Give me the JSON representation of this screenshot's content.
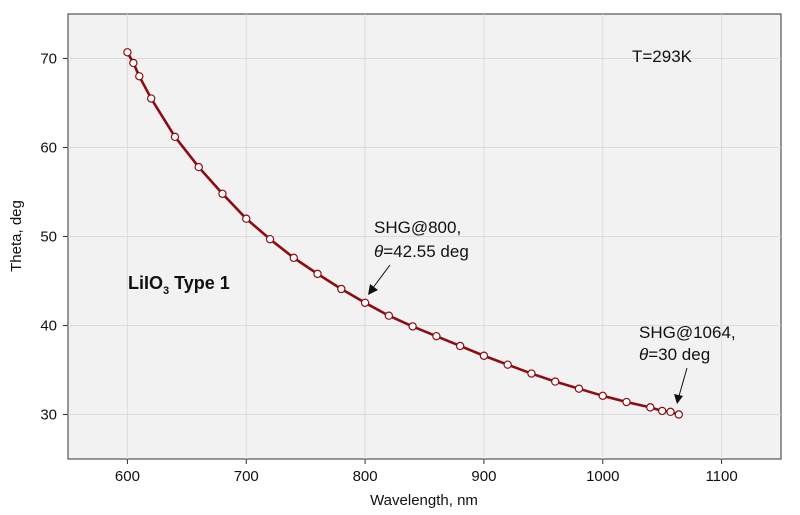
{
  "chart_data": {
    "type": "line",
    "title": "",
    "xlabel": "Wavelength, nm",
    "ylabel": "Theta, deg",
    "xlim": [
      550,
      1150
    ],
    "ylim": [
      25,
      75
    ],
    "xticks": [
      600,
      700,
      800,
      900,
      1000,
      1100
    ],
    "yticks": [
      30,
      40,
      50,
      60,
      70
    ],
    "grid": true,
    "series": [
      {
        "name": "LiIO3 Type 1",
        "color": "#8b0d12",
        "x": [
          600,
          605,
          610,
          620,
          640,
          660,
          680,
          700,
          720,
          740,
          760,
          780,
          800,
          820,
          840,
          860,
          880,
          900,
          920,
          940,
          960,
          980,
          1000,
          1020,
          1040,
          1050,
          1057,
          1064
        ],
        "y": [
          70.7,
          69.5,
          68.0,
          65.5,
          61.2,
          57.8,
          54.8,
          52.0,
          49.7,
          47.6,
          45.8,
          44.1,
          42.55,
          41.1,
          39.9,
          38.8,
          37.7,
          36.6,
          35.6,
          34.6,
          33.7,
          32.9,
          32.1,
          31.4,
          30.8,
          30.4,
          30.3,
          30.0
        ]
      }
    ],
    "label_main": "LiIO",
    "label_sub": "3",
    "label_tail": " Type 1",
    "temperature": "T=293K",
    "annotations": [
      {
        "line1": "SHG@800,",
        "theta_symbol": "θ",
        "line2_tail": "=42.55 deg",
        "target": [
          800,
          42.55
        ]
      },
      {
        "line1": "SHG@1064,",
        "theta_symbol": "θ",
        "line2_tail": "=30 deg",
        "target": [
          1064,
          30.0
        ]
      }
    ]
  }
}
